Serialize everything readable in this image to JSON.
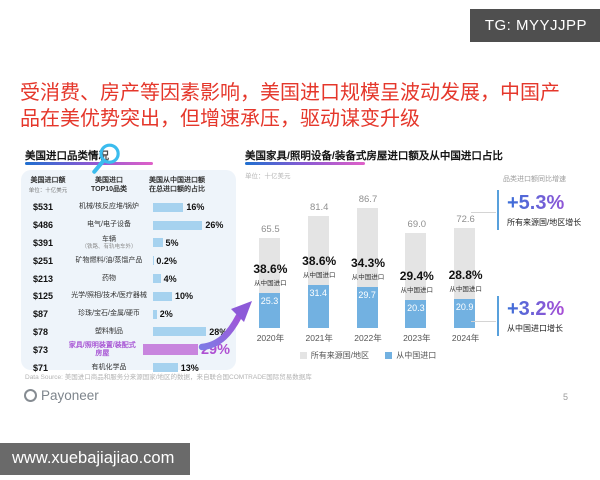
{
  "badges": {
    "tg": "TG: MYYJJPP",
    "watermark": "www.xuebajiajiao.com"
  },
  "title": "受消费、房产等因素影响，美国进口规模呈波动发展，中国产品在美优势突出，但增速承压，驱动谋变升级",
  "left_panel": {
    "heading": "美国进口品类情况",
    "columns": {
      "c1": {
        "line1": "美国进口额",
        "line2": "单位：十亿美元"
      },
      "c2": {
        "line1": "美国进口",
        "line2": "TOP10品类"
      },
      "c3": {
        "line1": "美国从中国进口额",
        "line2": "在总进口额的占比"
      }
    },
    "rows": [
      {
        "value": "$531",
        "category": "机械/核反应堆/锅炉",
        "sub": "",
        "share": "16%",
        "share_value": 16,
        "highlight": false
      },
      {
        "value": "$486",
        "category": "电气/电子设备",
        "sub": "",
        "share": "26%",
        "share_value": 26,
        "highlight": false
      },
      {
        "value": "$391",
        "category": "车辆",
        "sub": "（铁路、有轨电车外）",
        "share": "5%",
        "share_value": 5,
        "highlight": false
      },
      {
        "value": "$251",
        "category": "矿物燃料/油/蒸馏产品",
        "sub": "",
        "share": "0.2%",
        "share_value": 0.2,
        "highlight": false
      },
      {
        "value": "$213",
        "category": "药物",
        "sub": "",
        "share": "4%",
        "share_value": 4,
        "highlight": false
      },
      {
        "value": "$125",
        "category": "光学/照相/技术/医疗器械",
        "sub": "",
        "share": "10%",
        "share_value": 10,
        "highlight": false
      },
      {
        "value": "$87",
        "category": "珍珠/宝石/金属/硬币",
        "sub": "",
        "share": "2%",
        "share_value": 2,
        "highlight": false
      },
      {
        "value": "$78",
        "category": "塑料制品",
        "sub": "",
        "share": "28%",
        "share_value": 28,
        "highlight": false
      },
      {
        "value": "$73",
        "category": "家具/照明装置/装配式房屋",
        "sub": "",
        "share": "29%",
        "share_value": 29,
        "highlight": true
      },
      {
        "value": "$71",
        "category": "有机化学品",
        "sub": "",
        "share": "13%",
        "share_value": 13,
        "highlight": false
      }
    ]
  },
  "right_panel": {
    "heading": "美国家具/照明设备/装备式房屋进口额及从中国进口占比",
    "unit": "单位：十亿美元",
    "chart": {
      "years": [
        "2020年",
        "2021年",
        "2022年",
        "2023年",
        "2024年"
      ],
      "totals": [
        65.5,
        81.4,
        86.7,
        69.0,
        72.6
      ],
      "china": [
        25.3,
        31.4,
        29.7,
        20.3,
        20.9
      ],
      "share": [
        "38.6%",
        "38.6%",
        "34.3%",
        "29.4%",
        "28.8%"
      ],
      "share_note": "从中国进口"
    },
    "legend": [
      "所有来源国/地区",
      "从中国进口"
    ],
    "annotations": {
      "note": "品类进口额同比增速",
      "growth_total": {
        "value": "+5.3%",
        "label": "所有来源国/地区增长"
      },
      "growth_china": {
        "value": "+3.2%",
        "label": "从中国进口增长"
      }
    }
  },
  "footer": {
    "source": "Data Source: 美国进口商品和服务分来源国家/地区的数据，来自联合国COMTRADE国际贸易数据库",
    "logo": "Payoneer",
    "page": "5"
  },
  "colors": {
    "title_red": "#e5372b",
    "chart_blue": "#72b1e1",
    "chart_gray": "#e4e4e4",
    "table_bar_blue": "#a6d2ef",
    "highlight_purple": "#c885de",
    "accent_gradient_start": "#3a6fd8",
    "accent_gradient_end": "#a94fd6"
  },
  "chart_data": [
    {
      "type": "table",
      "title": "美国进口品类情况",
      "columns": [
        "美国进口额（单位：十亿美元）",
        "美国进口TOP10品类",
        "美国从中国进口额在总进口额的占比"
      ],
      "rows": [
        [
          "$531",
          "机械/核反应堆/锅炉",
          "16%"
        ],
        [
          "$486",
          "电气/电子设备",
          "26%"
        ],
        [
          "$391",
          "车辆（铁路、有轨电车外）",
          "5%"
        ],
        [
          "$251",
          "矿物燃料/油/蒸馏产品",
          "0.2%"
        ],
        [
          "$213",
          "药物",
          "4%"
        ],
        [
          "$125",
          "光学/照相/技术/医疗器械",
          "10%"
        ],
        [
          "$87",
          "珍珠/宝石/金属/硬币",
          "2%"
        ],
        [
          "$78",
          "塑料制品",
          "28%"
        ],
        [
          "$73",
          "家具/照明装置/装配式房屋",
          "29%"
        ],
        [
          "$71",
          "有机化学品",
          "13%"
        ]
      ]
    },
    {
      "type": "bar",
      "title": "美国家具/照明设备/装备式房屋进口额及从中国进口占比",
      "ylabel": "十亿美元",
      "categories": [
        "2020年",
        "2021年",
        "2022年",
        "2023年",
        "2024年"
      ],
      "series": [
        {
          "name": "所有来源国/地区",
          "values": [
            65.5,
            81.4,
            86.7,
            69.0,
            72.6
          ]
        },
        {
          "name": "从中国进口",
          "values": [
            25.3,
            31.4,
            29.7,
            20.3,
            20.9
          ]
        }
      ],
      "share_labels": [
        "38.6%",
        "38.6%",
        "34.3%",
        "29.4%",
        "28.8%"
      ],
      "annotations": [
        "+5.3% 所有来源国/地区增长",
        "+3.2% 从中国进口增长"
      ],
      "legend_position": "bottom",
      "grid": false,
      "ylim": [
        0,
        100
      ]
    }
  ]
}
